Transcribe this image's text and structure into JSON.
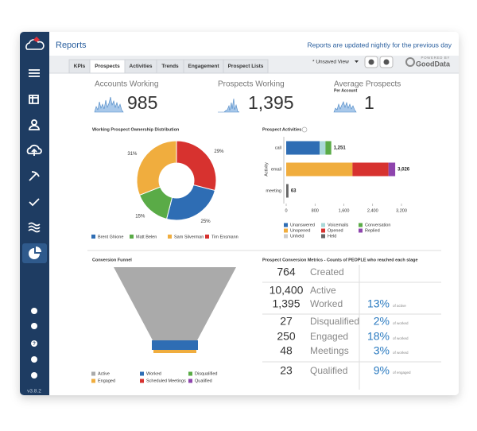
{
  "header": {
    "title": "Reports",
    "note": "Reports are updated nightly for the previous day"
  },
  "tabs": [
    "KPIs",
    "Prospects",
    "Activities",
    "Trends",
    "Engagement",
    "Prospect Lists"
  ],
  "active_tab": 1,
  "toolbar": {
    "view": "* Unsaved View",
    "powered": "POWERED BY",
    "brand": "GoodData"
  },
  "version": "v3.8.2",
  "kpis": [
    {
      "label": "Accounts Working",
      "value": "985"
    },
    {
      "label": "Prospects Working",
      "value": "1,395"
    },
    {
      "label": "Average Prospects",
      "sublabel": "Per Account",
      "value": "1"
    }
  ],
  "chart_data": [
    {
      "type": "pie",
      "title": "Working Prospect Ownership Distribution",
      "categories": [
        "Brent Ghione",
        "Matt Belen",
        "Sam Silverman",
        "Tim Ensmann"
      ],
      "values": [
        25,
        15,
        31,
        29
      ],
      "value_labels": [
        "25%",
        "15%",
        "31%",
        "29%"
      ],
      "colors": [
        "#2e6db4",
        "#5aab47",
        "#f0ad3e",
        "#d7322f"
      ],
      "donut": true
    },
    {
      "type": "bar",
      "orientation": "horizontal",
      "stacked": true,
      "title": "Prospect Activities",
      "ylabel": "Activity",
      "categories": [
        "call",
        "email",
        "meeting"
      ],
      "series": [
        {
          "name": "Unanswered",
          "color": "#2e6db4",
          "values": [
            930,
            null,
            null
          ]
        },
        {
          "name": "Voicemails",
          "color": "#a9d8d8",
          "values": [
            160,
            null,
            null
          ]
        },
        {
          "name": "Conversation",
          "color": "#5aab47",
          "values": [
            161,
            null,
            null
          ]
        },
        {
          "name": "Unopened",
          "color": "#f0ad3e",
          "values": [
            null,
            1840,
            null
          ]
        },
        {
          "name": "Opened",
          "color": "#d7322f",
          "values": [
            null,
            1000,
            null
          ]
        },
        {
          "name": "Replied",
          "color": "#8e44ad",
          "values": [
            null,
            186,
            null
          ]
        },
        {
          "name": "Unheld",
          "color": "#cccccc",
          "values": [
            null,
            null,
            null
          ]
        },
        {
          "name": "Held",
          "color": "#666666",
          "values": [
            null,
            null,
            63
          ]
        }
      ],
      "total_labels": [
        "1,251",
        "3,026",
        "63"
      ],
      "xlim": [
        0,
        3200
      ],
      "xticks": [
        0,
        800,
        {
          "value": 1600,
          "label": "1,600"
        },
        {
          "value": 2400,
          "label": "2,400"
        },
        {
          "value": 3200,
          "label": "3,200"
        }
      ]
    }
  ],
  "funnel": {
    "title": "Conversion Funnel",
    "legend": [
      {
        "name": "Active",
        "color": "#aaaaaa"
      },
      {
        "name": "Worked",
        "color": "#2e6db4"
      },
      {
        "name": "Disqualified",
        "color": "#5aab47"
      },
      {
        "name": "Engaged",
        "color": "#f0ad3e"
      },
      {
        "name": "Scheduled Meetings",
        "color": "#d7322f"
      },
      {
        "name": "Qualified",
        "color": "#8e44ad"
      }
    ]
  },
  "metrics": {
    "title": "Prospect Conversion Metrics - Counts of PEOPLE who reached each stage",
    "rows": [
      {
        "count": "764",
        "stage": "Created"
      },
      {
        "count": "10,400",
        "stage": "Active"
      },
      {
        "count": "1,395",
        "stage": "Worked",
        "pct": "13%",
        "of": "of active"
      },
      {
        "count": "27",
        "stage": "Disqualified",
        "pct": "2%",
        "of": "of worked"
      },
      {
        "count": "250",
        "stage": "Engaged",
        "pct": "18%",
        "of": "of worked"
      },
      {
        "count": "48",
        "stage": "Meetings",
        "pct": "3%",
        "of": "of worked"
      },
      {
        "count": "23",
        "stage": "Qualified",
        "pct": "9%",
        "of": "of engaged"
      }
    ]
  }
}
